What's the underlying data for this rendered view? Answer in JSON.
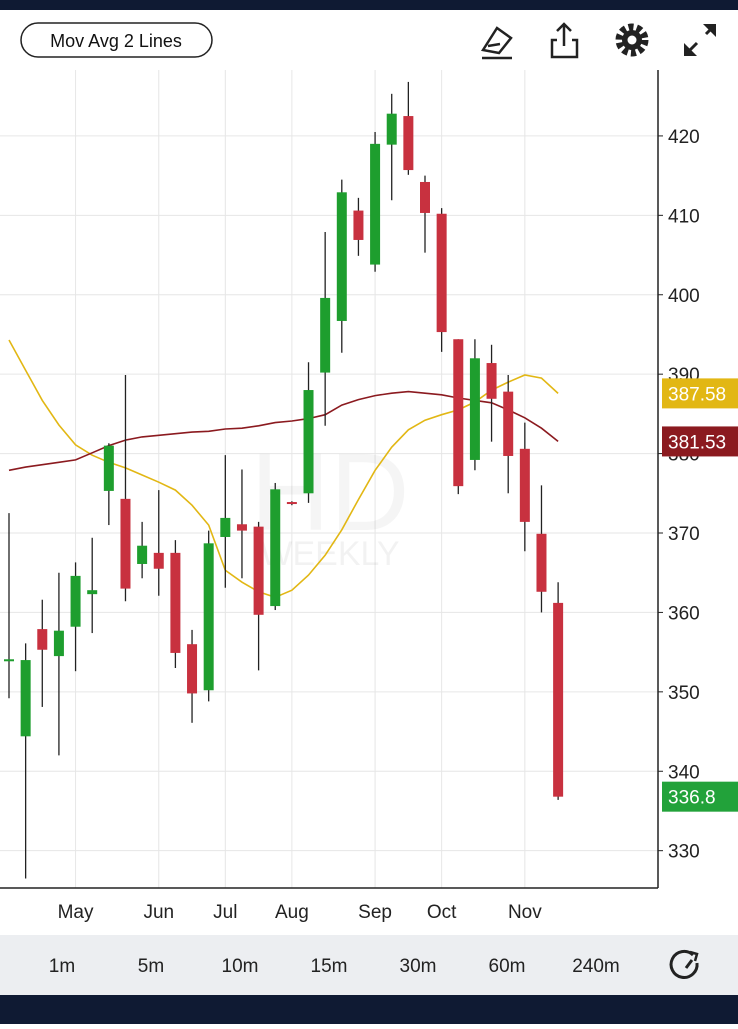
{
  "header": {
    "indicator_button": "Mov Avg 2 Lines"
  },
  "chart_data": {
    "type": "candlestick",
    "watermark": {
      "main": "HD",
      "sub": "WEEKLY"
    },
    "categories": [
      null,
      null,
      null,
      null,
      "May",
      null,
      null,
      null,
      null,
      "Jun",
      null,
      null,
      null,
      "Jul",
      null,
      null,
      null,
      "Aug",
      null,
      null,
      null,
      null,
      "Sep",
      null,
      null,
      null,
      "Oct",
      null,
      null,
      null,
      null,
      "Nov",
      null,
      null
    ],
    "open": [
      353.9,
      344.4,
      357.9,
      354.5,
      358.2,
      362.3,
      375.3,
      374.3,
      366.1,
      367.5,
      367.5,
      356.0,
      350.2,
      369.5,
      371.1,
      370.8,
      360.8,
      373.9,
      375.0,
      390.2,
      396.7,
      410.6,
      403.8,
      418.9,
      422.5,
      414.2,
      410.2,
      394.4,
      379.2,
      391.4,
      387.8,
      380.6,
      369.9,
      361.2
    ],
    "high": [
      372.5,
      356.1,
      361.6,
      365.0,
      366.3,
      369.4,
      381.3,
      389.9,
      371.4,
      375.4,
      369.1,
      357.8,
      370.3,
      379.8,
      378.0,
      371.4,
      376.3,
      374.0,
      391.5,
      407.9,
      414.5,
      412.2,
      420.5,
      425.3,
      426.8,
      415.0,
      410.9,
      394.4,
      394.4,
      393.7,
      389.9,
      383.9,
      376.0,
      363.8
    ],
    "low": [
      349.2,
      326.5,
      348.1,
      342.0,
      352.6,
      357.4,
      371.0,
      361.4,
      364.3,
      362.1,
      353.0,
      346.1,
      348.8,
      363.1,
      364.3,
      352.7,
      360.3,
      373.5,
      373.8,
      383.5,
      392.7,
      404.9,
      402.9,
      411.9,
      415.1,
      405.3,
      392.8,
      374.9,
      377.9,
      381.5,
      375.0,
      367.7,
      360.0,
      336.4
    ],
    "close": [
      354.1,
      354.0,
      355.3,
      357.7,
      364.6,
      362.8,
      381.0,
      363.0,
      368.4,
      365.5,
      354.9,
      349.8,
      368.7,
      371.9,
      370.3,
      359.7,
      375.5,
      373.7,
      388.0,
      399.6,
      412.9,
      406.9,
      419.0,
      422.8,
      415.7,
      410.3,
      395.3,
      375.9,
      392.0,
      386.9,
      379.7,
      371.4,
      362.6,
      336.8
    ],
    "up_color": "#1e9e2e",
    "down_color": "#c8313f",
    "lines": [
      {
        "color": "#e2b714",
        "values": [
          394.3,
          390.5,
          386.7,
          383.6,
          381.1,
          379.8,
          378.9,
          378.2,
          377.3,
          376.4,
          375.4,
          373.5,
          371.0,
          365.3,
          363.8,
          362.6,
          361.9,
          362.8,
          364.7,
          367.2,
          370.4,
          374.2,
          377.9,
          380.8,
          383.0,
          384.2,
          384.9,
          385.5,
          386.5,
          388.0,
          389.0,
          389.9,
          389.5,
          387.58
        ]
      },
      {
        "color": "#8b1a1f",
        "values": [
          377.9,
          378.3,
          378.6,
          378.9,
          379.2,
          380.1,
          381.0,
          381.7,
          382.1,
          382.3,
          382.5,
          382.7,
          382.8,
          383.1,
          383.2,
          383.5,
          383.9,
          384.1,
          384.4,
          384.9,
          386.1,
          386.8,
          387.3,
          387.6,
          387.8,
          387.6,
          387.4,
          387.0,
          386.7,
          386.4,
          385.5,
          384.5,
          383.2,
          381.53
        ]
      }
    ],
    "ylim": [
      325.3,
      428.3
    ],
    "yticks": [
      330,
      340,
      350,
      360,
      370,
      380,
      390,
      400,
      410,
      420
    ],
    "grid": true
  },
  "intervals": [
    "1m",
    "5m",
    "10m",
    "15m",
    "30m",
    "60m",
    "240m"
  ]
}
